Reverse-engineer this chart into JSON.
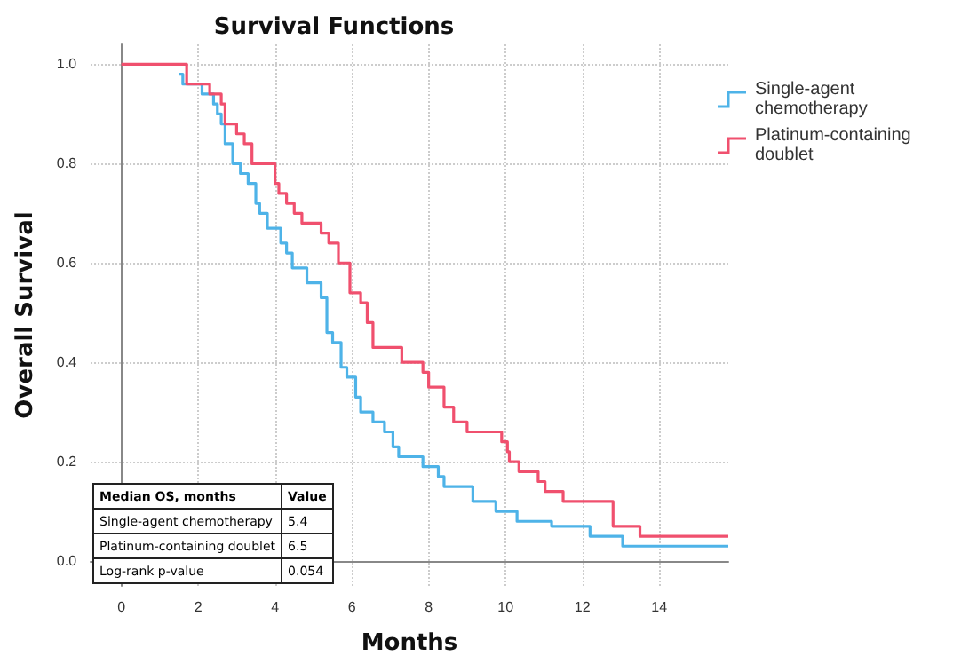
{
  "chart_data": {
    "type": "step",
    "title": "Survival Functions",
    "xlabel": "Months",
    "ylabel": "Overall Survival",
    "xlim": [
      -0.8,
      15.8
    ],
    "xticks": [
      0,
      2,
      4,
      6,
      8,
      10,
      12,
      14
    ],
    "ylim": [
      -0.05,
      1.04
    ],
    "yticks": [
      {
        "value": 0,
        "label": "0.0"
      },
      {
        "value": 0.2,
        "label": "0.2"
      },
      {
        "value": 0.4,
        "label": "0.4"
      },
      {
        "value": 0.6,
        "label": "0.6"
      },
      {
        "value": 0.8,
        "label": "0.8"
      },
      {
        "value": 1,
        "label": "1.0"
      }
    ],
    "grid": true,
    "legend": "top right",
    "marker": "none",
    "line_style": "solid",
    "series": [
      {
        "name": "Single-agent chemotherapy",
        "color": "#4eb3e8",
        "x": [
          1.5,
          1.6,
          2.1,
          2.4,
          2.5,
          2.6,
          2.7,
          2.9,
          3.1,
          3.3,
          3.5,
          3.6,
          3.8,
          4.15,
          4.3,
          4.45,
          4.83,
          5.2,
          5.35,
          5.5,
          5.72,
          5.87,
          6.1,
          6.23,
          6.55,
          6.85,
          7.07,
          7.22,
          7.85,
          8.25,
          8.4,
          9.15,
          9.75,
          10.3,
          11.2,
          12.2,
          13.05,
          15.8
        ],
        "values": [
          0.98,
          0.96,
          0.94,
          0.92,
          0.9,
          0.88,
          0.84,
          0.8,
          0.78,
          0.76,
          0.72,
          0.7,
          0.67,
          0.64,
          0.62,
          0.59,
          0.56,
          0.53,
          0.46,
          0.44,
          0.39,
          0.37,
          0.33,
          0.3,
          0.28,
          0.26,
          0.23,
          0.21,
          0.19,
          0.17,
          0.15,
          0.12,
          0.1,
          0.08,
          0.07,
          0.05,
          0.03,
          0.03
        ]
      },
      {
        "name": "Platinum-containing doublet",
        "color": "#f0506e",
        "x": [
          0,
          1.7,
          2.3,
          2.6,
          2.7,
          3.0,
          3.2,
          3.4,
          4.0,
          4.1,
          4.3,
          4.5,
          4.7,
          5.2,
          5.4,
          5.65,
          5.95,
          6.23,
          6.4,
          6.55,
          7.3,
          7.85,
          8.0,
          8.4,
          8.65,
          9.0,
          9.9,
          10.05,
          10.1,
          10.35,
          10.85,
          11.03,
          11.5,
          12.8,
          13.5,
          15.8
        ],
        "values": [
          1,
          0.96,
          0.94,
          0.92,
          0.88,
          0.86,
          0.84,
          0.8,
          0.76,
          0.74,
          0.72,
          0.7,
          0.68,
          0.66,
          0.64,
          0.6,
          0.54,
          0.52,
          0.48,
          0.43,
          0.4,
          0.38,
          0.35,
          0.31,
          0.28,
          0.26,
          0.24,
          0.22,
          0.2,
          0.18,
          0.16,
          0.14,
          0.12,
          0.07,
          0.05,
          0.05
        ]
      }
    ],
    "annotations": [
      "Median OS, months",
      "Value",
      "Single-agent chemotherapy",
      "5.4",
      "Platinum-containing doublet",
      "6.5",
      "Log-rank p-value",
      "0.054"
    ]
  }
}
